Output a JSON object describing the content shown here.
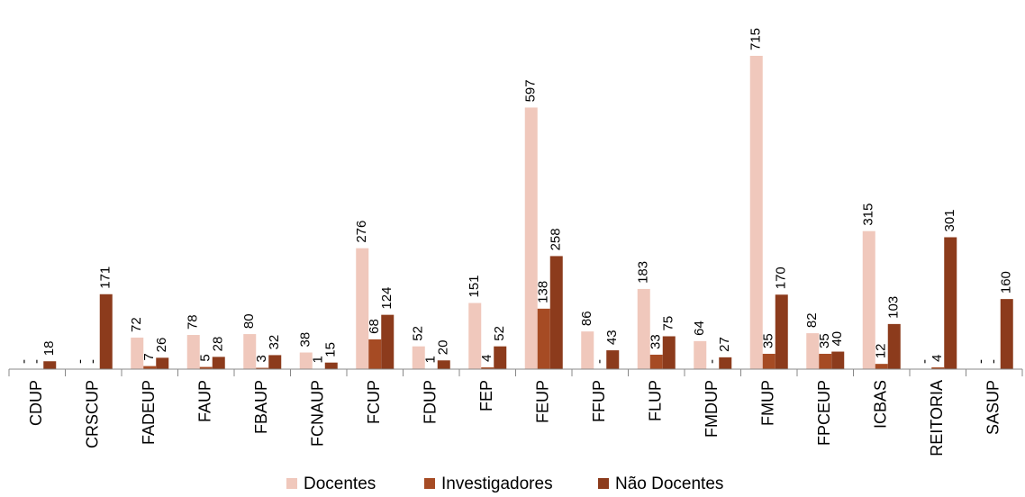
{
  "chart_data": {
    "type": "bar",
    "categories": [
      "CDUP",
      "CRSCUP",
      "FADEUP",
      "FAUP",
      "FBAUP",
      "FCNAUP",
      "FCUP",
      "FDUP",
      "FEP",
      "FEUP",
      "FFUP",
      "FLUP",
      "FMDUP",
      "FMUP",
      "FPCEUP",
      "ICBAS",
      "REITORIA",
      "SASUP"
    ],
    "series": [
      {
        "name": "Docentes",
        "color": "#f0c8bc",
        "values": [
          null,
          null,
          72,
          78,
          80,
          38,
          276,
          52,
          151,
          597,
          86,
          183,
          64,
          715,
          82,
          315,
          null,
          null
        ],
        "value_labels": [
          "-",
          "-",
          null,
          null,
          null,
          null,
          null,
          null,
          null,
          null,
          null,
          null,
          null,
          null,
          null,
          null,
          "-",
          "-"
        ]
      },
      {
        "name": "Investigadores",
        "color": "#a64b24",
        "values": [
          null,
          null,
          7,
          5,
          3,
          1,
          68,
          1,
          4,
          138,
          null,
          33,
          null,
          35,
          35,
          12,
          4,
          null
        ],
        "value_labels": [
          "-",
          "-",
          null,
          null,
          null,
          null,
          null,
          null,
          null,
          null,
          "-",
          null,
          "-",
          null,
          null,
          null,
          null,
          "-"
        ]
      },
      {
        "name": "Não Docentes",
        "color": "#8c3b1c",
        "values": [
          18,
          171,
          26,
          28,
          32,
          15,
          124,
          20,
          52,
          258,
          43,
          75,
          27,
          170,
          40,
          103,
          301,
          160
        ],
        "value_labels": [
          null,
          null,
          null,
          null,
          null,
          null,
          null,
          null,
          null,
          null,
          null,
          null,
          null,
          null,
          null,
          null,
          null,
          null
        ]
      }
    ],
    "legend": "bottom"
  }
}
